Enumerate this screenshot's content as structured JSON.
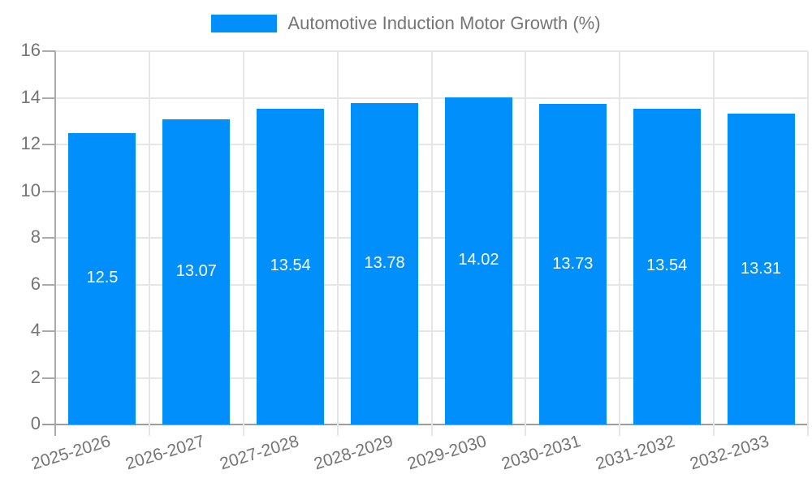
{
  "legend": {
    "label": "Automotive Induction Motor Growth (%)"
  },
  "chart_data": {
    "type": "bar",
    "title": "Automotive Induction Motor Growth (%)",
    "categories": [
      "2025-2026",
      "2026-2027",
      "2027-2028",
      "2028-2029",
      "2029-2030",
      "2030-2031",
      "2031-2032",
      "2032-2033"
    ],
    "series": [
      {
        "name": "Automotive Induction Motor Growth (%)",
        "values": [
          12.5,
          13.07,
          13.54,
          13.78,
          14.02,
          13.73,
          13.54,
          13.31
        ]
      }
    ],
    "xlabel": "",
    "ylabel": "",
    "ylim": [
      0,
      16
    ],
    "yticks": [
      0,
      2,
      4,
      6,
      8,
      10,
      12,
      14,
      16
    ],
    "grid": true,
    "legend_position": "top",
    "value_labels": "inside-center",
    "colors": {
      "bar": "#0190fb",
      "axis_label": "#757575",
      "value_label": "#ffffff",
      "gridline": "#e6e6e6",
      "axis_line": "#aaaaaa",
      "baseline": "#9e9e9e"
    }
  }
}
